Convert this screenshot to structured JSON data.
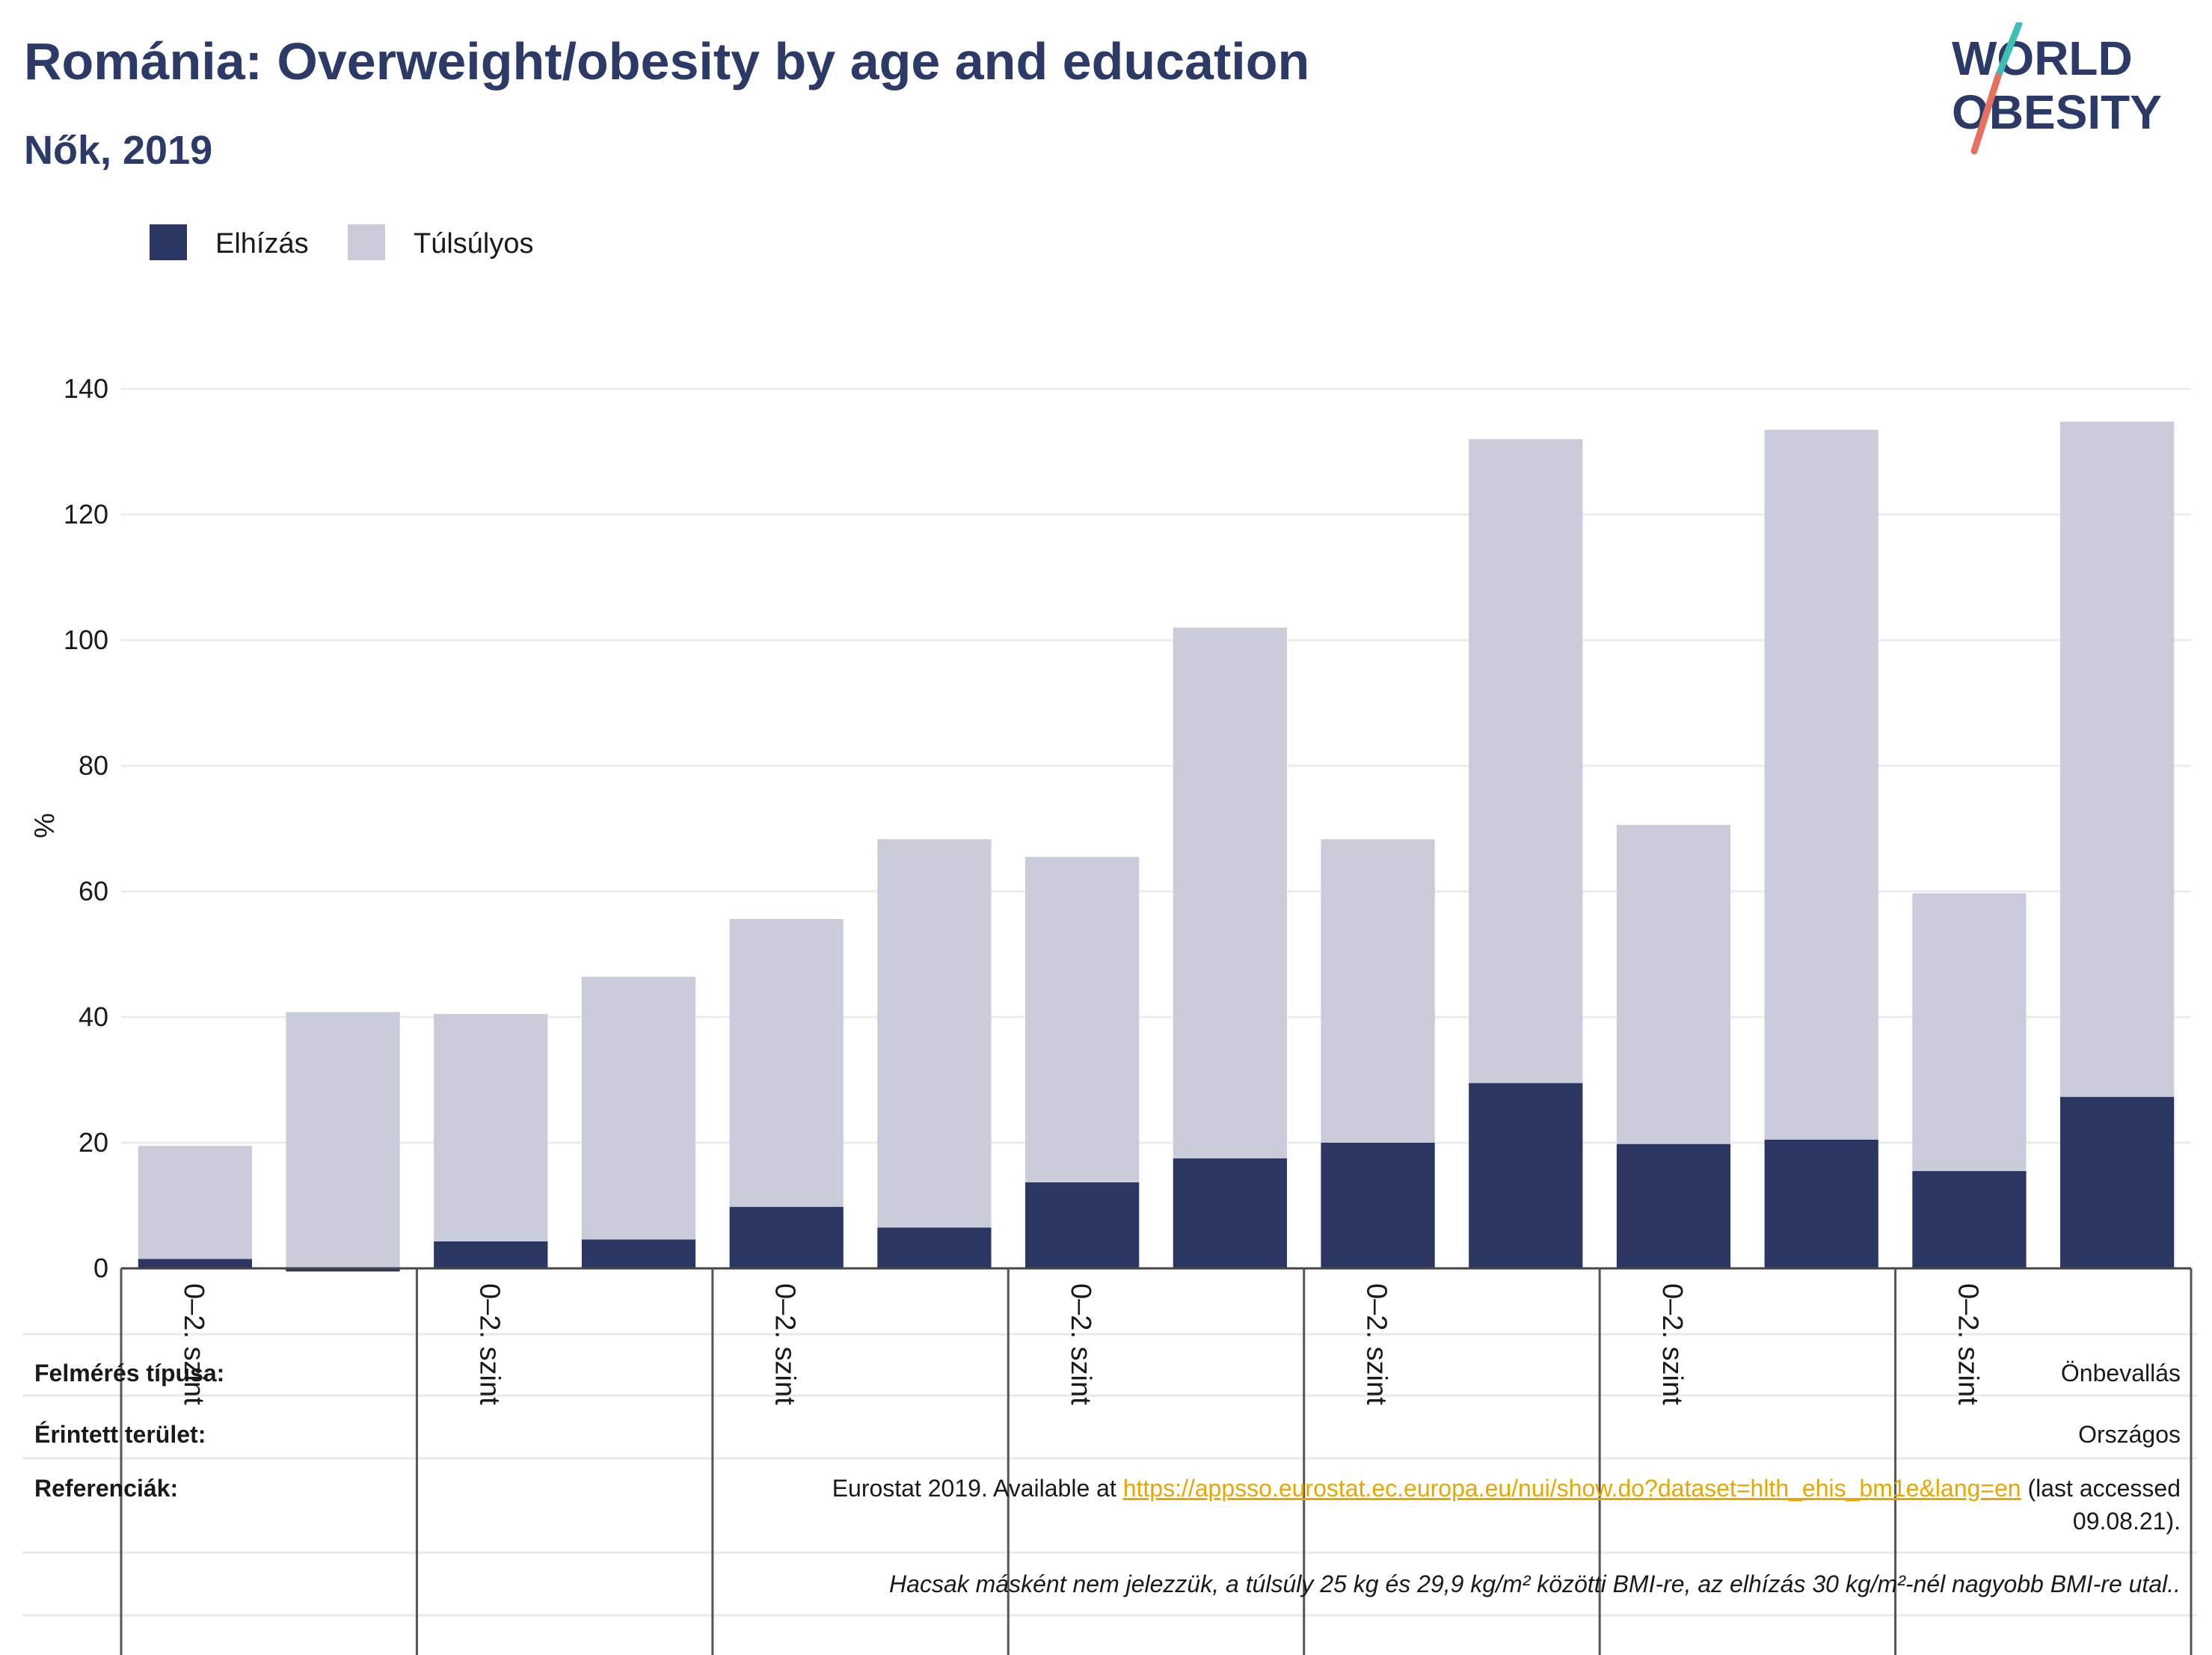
{
  "header": {
    "title": "Románia: Overweight/obesity by age and education",
    "subtitle": "Nők, 2019"
  },
  "logo": {
    "line1": "WORLD",
    "line2": "OBESITY",
    "colors": {
      "text": "#2b3a67",
      "slash_teal": "#3bbfb6",
      "slash_coral": "#e8705f"
    }
  },
  "chart_data": {
    "type": "bar",
    "stacked": true,
    "categories": [
      "0–2. szint",
      "",
      "0–2. szint",
      "",
      "0–2. szint",
      "",
      "0–2. szint",
      "",
      "0–2. szint",
      "",
      "0–2. szint",
      "",
      "0–2. szint",
      ""
    ],
    "group_tick_label": "0–2. szint",
    "series": [
      {
        "name": "Elhízás",
        "color": "#2b3663",
        "values": [
          1.5,
          -0.5,
          4.3,
          4.6,
          9.8,
          6.5,
          13.7,
          17.5,
          20.0,
          29.5,
          19.8,
          20.5,
          15.5,
          27.3
        ]
      },
      {
        "name": "Túlsúlyos",
        "color": "#cacdd9",
        "values": [
          18.0,
          40.8,
          36.2,
          41.8,
          45.8,
          61.8,
          51.8,
          84.5,
          48.3,
          102.5,
          50.8,
          113.0,
          44.2,
          107.5
        ]
      }
    ],
    "ylabel": "%",
    "ylim": [
      0,
      140
    ],
    "yticks": [
      0,
      20,
      40,
      60,
      80,
      100,
      120,
      140
    ],
    "grid": true,
    "legend_position": "top-left"
  },
  "info_table": {
    "survey_type_label": "Felmérés típusa:",
    "survey_type_value": "Önbevallás",
    "area_label": "Érintett terület:",
    "area_value": "Országos",
    "references_label": "Referenciák:",
    "ref_prefix": "Eurostat 2019. Available at ",
    "ref_link": "https://appsso.eurostat.ec.europa.eu/nui/show.do?dataset=hlth_ehis_bm1e&lang=en",
    "ref_suffix": " (last accessed",
    "ref_line2": "09.08.21).",
    "note": "Hacsak másként nem jelezzük, a túlsúly 25 kg és 29,9 kg/m² közötti BMI-re, az elhízás 30 kg/m²-nél nagyobb BMI-re utal.."
  }
}
